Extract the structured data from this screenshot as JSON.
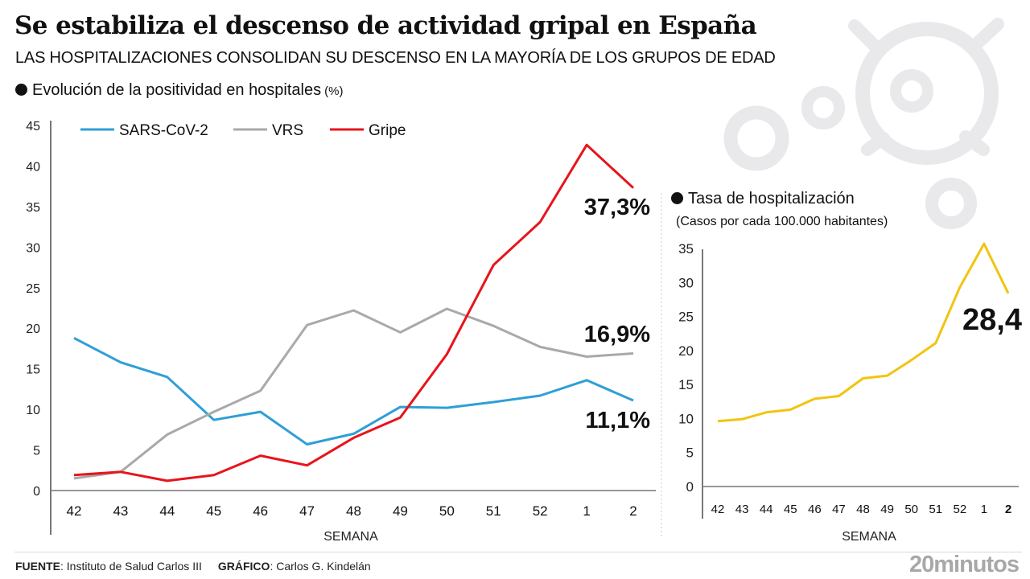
{
  "header": {
    "title": "Se estabiliza el descenso de actividad gripal en España",
    "subtitle": "LAS HOSPITALIZACIONES CONSOLIDAN SU DESCENSO EN LA MAYORÍA DE LOS GRUPOS DE EDAD"
  },
  "sections": {
    "left_title": "Evolución de la positividad en hospitales",
    "left_unit": "(%)",
    "right_title": "Tasa de hospitalización",
    "right_note": "(Casos por cada 100.000 habitantes)"
  },
  "footer": {
    "source_label": "FUENTE",
    "source_value": ": Instituto de Salud Carlos III",
    "graphic_label": "GRÁFICO",
    "graphic_value": ": Carlos G. Kindelán",
    "brand": "20minutos"
  },
  "chart_data": [
    {
      "type": "line",
      "title": "Evolución de la positividad en hospitales (%)",
      "xlabel": "SEMANA",
      "ylabel": "%",
      "ylim": [
        0,
        45
      ],
      "yticks": [
        0,
        5,
        10,
        15,
        20,
        25,
        30,
        35,
        40,
        45
      ],
      "grid": false,
      "legend": "top",
      "categories": [
        "42",
        "43",
        "44",
        "45",
        "46",
        "47",
        "48",
        "49",
        "50",
        "51",
        "52",
        "1",
        "2"
      ],
      "series": [
        {
          "name": "SARS-CoV-2",
          "color": "#2e9fd6",
          "values": [
            18.8,
            15.8,
            14.0,
            8.7,
            9.7,
            5.7,
            7.0,
            10.3,
            10.2,
            10.9,
            11.7,
            13.6,
            11.1
          ],
          "end_label": "11,1%"
        },
        {
          "name": "VRS",
          "color": "#a9a9a9",
          "values": [
            1.5,
            2.3,
            6.9,
            9.7,
            12.3,
            20.4,
            22.2,
            19.5,
            22.4,
            20.3,
            17.7,
            16.5,
            16.9
          ],
          "end_label": "16,9%"
        },
        {
          "name": "Gripe",
          "color": "#e8141c",
          "values": [
            1.9,
            2.3,
            1.2,
            1.9,
            4.3,
            3.1,
            6.5,
            9.0,
            16.8,
            27.8,
            33.1,
            42.6,
            37.3
          ],
          "end_label": "37,3%"
        }
      ]
    },
    {
      "type": "line",
      "title": "Tasa de hospitalización",
      "subtitle": "(Casos por cada 100.000 habitantes)",
      "xlabel": "SEMANA",
      "ylim": [
        0,
        35
      ],
      "yticks": [
        0,
        5,
        10,
        15,
        20,
        25,
        30,
        35
      ],
      "grid": false,
      "categories": [
        "42",
        "43",
        "44",
        "45",
        "46",
        "47",
        "48",
        "49",
        "50",
        "51",
        "52",
        "1",
        "2"
      ],
      "highlight_category": "2",
      "series": [
        {
          "name": "Tasa de hospitalización",
          "color": "#f2c40f",
          "values": [
            9.6,
            9.9,
            10.9,
            11.3,
            12.9,
            13.3,
            15.9,
            16.3,
            18.6,
            21.1,
            29.3,
            35.7,
            28.4
          ],
          "end_label": "28,4"
        }
      ]
    }
  ]
}
